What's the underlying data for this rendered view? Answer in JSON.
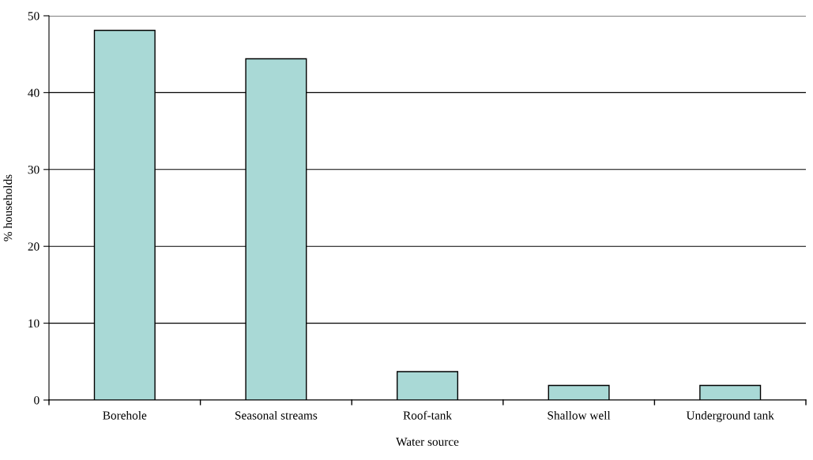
{
  "chart_data": {
    "type": "bar",
    "xlabel": "Water source",
    "ylabel": "% households",
    "categories": [
      "Borehole",
      "Seasonal streams",
      "Roof-tank",
      "Shallow well",
      "Underground tank"
    ],
    "values": [
      48.1,
      44.4,
      3.7,
      1.9,
      1.9
    ],
    "color": "#a9d9d6",
    "ylim": [
      0,
      50
    ],
    "yticks": [
      0,
      10,
      20,
      30,
      40,
      50
    ],
    "grid": "y",
    "legend": false
  }
}
